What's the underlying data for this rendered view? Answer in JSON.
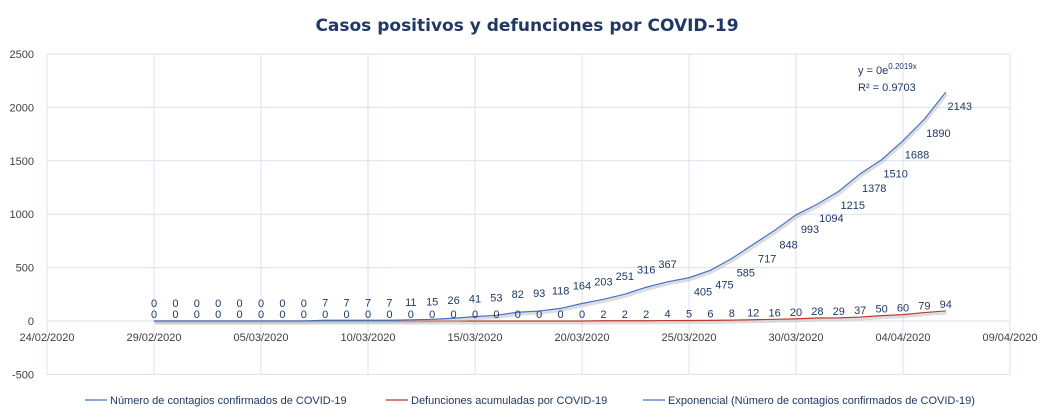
{
  "chart_data": {
    "type": "line",
    "title": "Casos positivos y defunciones por COVID-19",
    "xlabel": "",
    "ylabel": "",
    "xlim": [
      "24/02/2020",
      "09/04/2020"
    ],
    "x_ticks": [
      "24/02/2020",
      "29/02/2020",
      "05/03/2020",
      "10/03/2020",
      "15/03/2020",
      "20/03/2020",
      "25/03/2020",
      "30/03/2020",
      "04/04/2020",
      "09/04/2020"
    ],
    "ylim": [
      -500,
      2500
    ],
    "y_ticks": [
      "-500",
      "0",
      "500",
      "1000",
      "1500",
      "2000",
      "2500"
    ],
    "grid": true,
    "legend_position": "bottom",
    "series": [
      {
        "name": "Número de contagios confirmados de COVID-19",
        "color": "#4472c4",
        "start_date": "29/02/2020",
        "values": [
          0,
          0,
          0,
          0,
          0,
          0,
          0,
          0,
          7,
          7,
          7,
          7,
          11,
          15,
          26,
          41,
          53,
          82,
          93,
          118,
          164,
          203,
          251,
          316,
          367,
          405,
          475,
          585,
          717,
          848,
          993,
          1094,
          1215,
          1378,
          1510,
          1688,
          1890,
          2143
        ]
      },
      {
        "name": "Defunciones acumuladas por COVID-19",
        "color": "#c0392b",
        "start_date": "29/02/2020",
        "values": [
          0,
          0,
          0,
          0,
          0,
          0,
          0,
          0,
          0,
          0,
          0,
          0,
          0,
          0,
          0,
          0,
          0,
          0,
          0,
          0,
          0,
          2,
          2,
          2,
          4,
          5,
          6,
          8,
          12,
          16,
          20,
          28,
          29,
          37,
          50,
          60,
          79,
          94
        ]
      }
    ],
    "trendline": {
      "name": "Exponencial (Número de contagios confirmados de COVID-19)",
      "color": "#4472c4",
      "equation": "y = 0e",
      "exponent": "0.2019x",
      "r2": "R² = 0.9703"
    }
  }
}
